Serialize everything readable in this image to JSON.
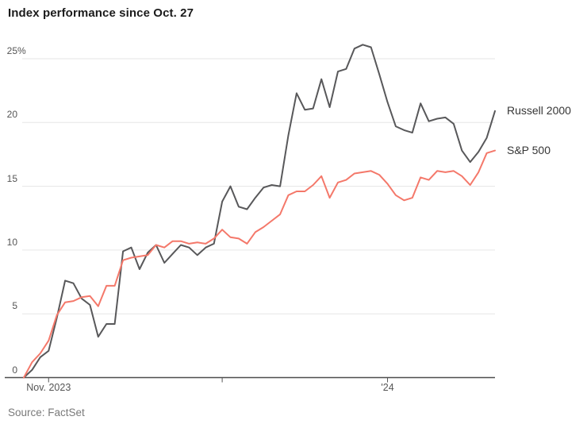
{
  "chart_data": {
    "type": "line",
    "title": "Index performance since Oct. 27",
    "source": "Source: FactSet",
    "ylim": [
      0,
      25
    ],
    "yticks": [
      0,
      5,
      10,
      15,
      20,
      25
    ],
    "ytick_labels": [
      "0",
      "5",
      "10",
      "15",
      "20",
      "25%"
    ],
    "grid": "horizontal",
    "legend_position": "inline-right-of-line-ends",
    "x_axis": {
      "ticks": [
        {
          "position_index": 3,
          "label": "Nov. 2023"
        },
        {
          "position_index": 24,
          "label": ""
        },
        {
          "position_index": 44,
          "label": "'24"
        }
      ]
    },
    "series": [
      {
        "name": "Russell 2000",
        "color": "#58585a",
        "values": [
          0,
          0.6,
          1.6,
          2.1,
          4.7,
          7.6,
          7.4,
          6.2,
          5.7,
          3.2,
          4.2,
          4.2,
          9.9,
          10.2,
          8.5,
          9.8,
          10.4,
          9.0,
          9.7,
          10.4,
          10.2,
          9.6,
          10.2,
          10.5,
          13.8,
          15.0,
          13.4,
          13.2,
          14.1,
          14.9,
          15.1,
          15.0,
          19.0,
          22.3,
          21.0,
          21.1,
          23.4,
          21.2,
          24.0,
          24.2,
          25.8,
          26.1,
          25.9,
          23.8,
          21.6,
          19.7,
          19.4,
          19.2,
          21.5,
          20.1,
          20.3,
          20.4,
          19.9,
          17.8,
          16.9,
          17.7,
          18.8,
          20.9
        ]
      },
      {
        "name": "S&P 500",
        "color": "#f4786a",
        "values": [
          0,
          1.2,
          1.9,
          2.9,
          4.9,
          5.9,
          6.0,
          6.3,
          6.4,
          5.6,
          7.2,
          7.2,
          9.2,
          9.4,
          9.5,
          9.6,
          10.4,
          10.2,
          10.7,
          10.7,
          10.5,
          10.6,
          10.5,
          10.9,
          11.6,
          11.0,
          10.9,
          10.5,
          11.4,
          11.8,
          12.3,
          12.8,
          14.3,
          14.6,
          14.6,
          15.1,
          15.8,
          14.1,
          15.3,
          15.5,
          16.0,
          16.1,
          16.2,
          15.9,
          15.2,
          14.3,
          13.9,
          14.1,
          15.7,
          15.5,
          16.2,
          16.1,
          16.2,
          15.8,
          15.1,
          16.1,
          17.6,
          17.8
        ]
      }
    ],
    "style_colors": {
      "gridline": "#e6e6e6",
      "axis_line": "#4d4d4d",
      "tick": "#555555",
      "axis_text": "#555555",
      "title_text": "#1b1b1b",
      "source_text": "#7a7a7a",
      "series_label_text": "#363636"
    }
  }
}
